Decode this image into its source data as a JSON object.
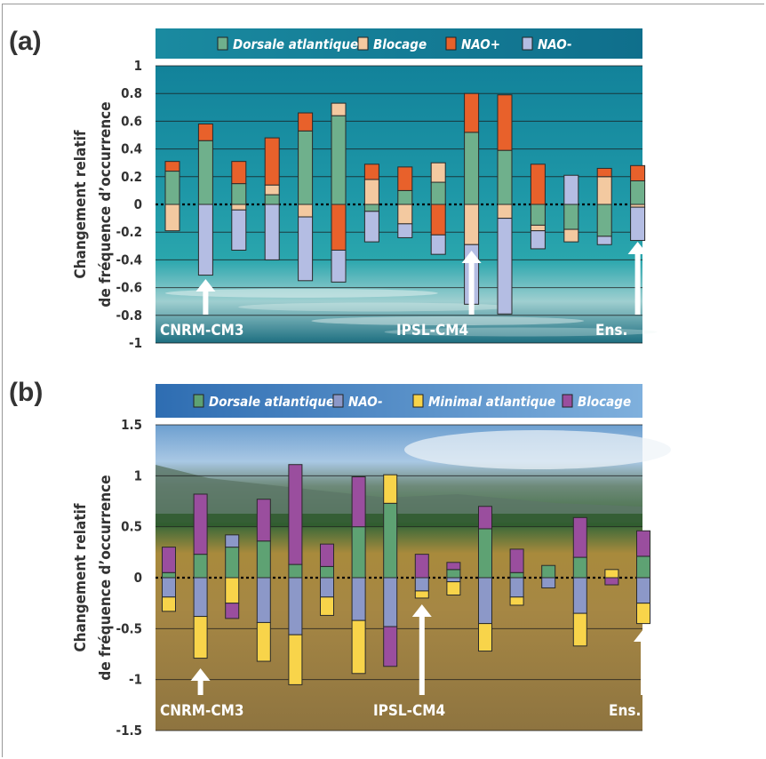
{
  "panels": [
    {
      "label": "(a)",
      "ylabel_line1": "Changement relatif",
      "ylabel_line2": "de fréquence d’occurrence",
      "legend": [
        {
          "name": "Dorsale atlantique",
          "color": "#6fb08c"
        },
        {
          "name": "Blocage",
          "color": "#f3c9a0"
        },
        {
          "name": "NAO+",
          "color": "#e8612b"
        },
        {
          "name": "NAO-",
          "color": "#b4bde3"
        }
      ],
      "model_labels": [
        {
          "text": "CNRM-CM3",
          "index": 1
        },
        {
          "text": "IPSL-CM4",
          "index": 9
        },
        {
          "text": "Ens.",
          "index": 16
        }
      ]
    },
    {
      "label": "(b)",
      "ylabel_line1": "Changement relatif",
      "ylabel_line2": "de fréquence d’occurrence",
      "legend": [
        {
          "name": "Dorsale atlantique",
          "color": "#5ea273"
        },
        {
          "name": "NAO-",
          "color": "#8c98c8"
        },
        {
          "name": "Minimal atlantique",
          "color": "#f8d44a"
        },
        {
          "name": "Blocage",
          "color": "#9a4e9e"
        }
      ],
      "model_labels": [
        {
          "text": "CNRM-CM3",
          "index": 1
        },
        {
          "text": "IPSL-CM4",
          "index": 9
        },
        {
          "text": "Ens.",
          "index": 16
        }
      ]
    }
  ],
  "chart_data": [
    {
      "type": "bar",
      "stacked": true,
      "ylim": [
        -1,
        1
      ],
      "yticks": [
        "1",
        "0.8",
        "0.6",
        "0.4",
        "0.2",
        "0",
        "-0.2",
        "-0.4",
        "-0.6",
        "-0.8",
        "-1"
      ],
      "ytick_values": [
        1,
        0.8,
        0.6,
        0.4,
        0.2,
        0,
        -0.2,
        -0.4,
        -0.6,
        -0.8,
        -1
      ],
      "grid": true,
      "bars": [
        [
          {
            "s": 0,
            "v": 0.0
          },
          {
            "s": 0,
            "v": 0.24
          },
          {
            "s": 1,
            "v": -0.19
          },
          {
            "s": 2,
            "v": 0.07
          }
        ],
        [
          {
            "s": 0,
            "v": 0.46
          },
          {
            "s": 2,
            "v": 0.12
          },
          {
            "s": 3,
            "v": -0.51
          }
        ],
        [
          {
            "s": 0,
            "v": 0.15
          },
          {
            "s": 2,
            "v": 0.16
          },
          {
            "s": 1,
            "v": -0.04
          },
          {
            "s": 3,
            "v": -0.29
          }
        ],
        [
          {
            "s": 0,
            "v": 0.07
          },
          {
            "s": 1,
            "v": 0.07
          },
          {
            "s": 2,
            "v": 0.34
          },
          {
            "s": 3,
            "v": -0.4
          }
        ],
        [
          {
            "s": 0,
            "v": 0.53
          },
          {
            "s": 2,
            "v": 0.13
          },
          {
            "s": 1,
            "v": -0.09
          },
          {
            "s": 3,
            "v": -0.46
          }
        ],
        [
          {
            "s": 0,
            "v": 0.64
          },
          {
            "s": 1,
            "v": 0.09
          },
          {
            "s": 2,
            "v": -0.33
          },
          {
            "s": 3,
            "v": -0.23
          }
        ],
        [
          {
            "s": 1,
            "v": 0.18
          },
          {
            "s": 2,
            "v": 0.11
          },
          {
            "s": 0,
            "v": -0.05
          },
          {
            "s": 3,
            "v": -0.22
          }
        ],
        [
          {
            "s": 0,
            "v": 0.1
          },
          {
            "s": 2,
            "v": 0.17
          },
          {
            "s": 1,
            "v": -0.14
          },
          {
            "s": 3,
            "v": -0.1
          }
        ],
        [
          {
            "s": 0,
            "v": 0.16
          },
          {
            "s": 1,
            "v": 0.14
          },
          {
            "s": 2,
            "v": -0.22
          },
          {
            "s": 3,
            "v": -0.14
          }
        ],
        [
          {
            "s": 0,
            "v": 0.52
          },
          {
            "s": 2,
            "v": 0.28
          },
          {
            "s": 1,
            "v": -0.29
          },
          {
            "s": 3,
            "v": -0.43
          }
        ],
        [
          {
            "s": 0,
            "v": 0.39
          },
          {
            "s": 2,
            "v": 0.4
          },
          {
            "s": 1,
            "v": -0.1
          },
          {
            "s": 3,
            "v": -0.69
          }
        ],
        [
          {
            "s": 2,
            "v": 0.29
          },
          {
            "s": 0,
            "v": -0.15
          },
          {
            "s": 1,
            "v": -0.04
          },
          {
            "s": 3,
            "v": -0.13
          }
        ],
        [
          {
            "s": 3,
            "v": 0.21
          },
          {
            "s": 0,
            "v": -0.18
          },
          {
            "s": 1,
            "v": -0.09
          }
        ],
        [
          {
            "s": 1,
            "v": 0.2
          },
          {
            "s": 2,
            "v": 0.06
          },
          {
            "s": 0,
            "v": -0.23
          },
          {
            "s": 3,
            "v": -0.06
          }
        ],
        [
          {
            "s": 0,
            "v": 0.17
          },
          {
            "s": 2,
            "v": 0.11
          },
          {
            "s": 1,
            "v": -0.02
          },
          {
            "s": 3,
            "v": -0.24
          }
        ]
      ]
    },
    {
      "type": "bar",
      "stacked": true,
      "ylim": [
        -1.5,
        1.5
      ],
      "yticks": [
        "1.5",
        "1",
        "0.5",
        "0",
        "-0.5",
        "-1",
        "-1.5"
      ],
      "ytick_values": [
        1.5,
        1,
        0.5,
        0,
        -0.5,
        -1,
        -1.5
      ],
      "grid": true,
      "bars": [
        [
          {
            "s": 0,
            "v": 0.05
          },
          {
            "s": 3,
            "v": 0.25
          },
          {
            "s": 1,
            "v": -0.19
          },
          {
            "s": 2,
            "v": -0.14
          }
        ],
        [
          {
            "s": 0,
            "v": 0.23
          },
          {
            "s": 3,
            "v": 0.59
          },
          {
            "s": 1,
            "v": -0.38
          },
          {
            "s": 2,
            "v": -0.41
          }
        ],
        [
          {
            "s": 0,
            "v": 0.3
          },
          {
            "s": 1,
            "v": 0.12
          },
          {
            "s": 2,
            "v": -0.25
          },
          {
            "s": 3,
            "v": -0.15
          }
        ],
        [
          {
            "s": 0,
            "v": 0.36
          },
          {
            "s": 3,
            "v": 0.41
          },
          {
            "s": 1,
            "v": -0.44
          },
          {
            "s": 2,
            "v": -0.38
          }
        ],
        [
          {
            "s": 0,
            "v": 0.13
          },
          {
            "s": 3,
            "v": 0.98
          },
          {
            "s": 1,
            "v": -0.56
          },
          {
            "s": 2,
            "v": -0.49
          }
        ],
        [
          {
            "s": 0,
            "v": 0.11
          },
          {
            "s": 3,
            "v": 0.22
          },
          {
            "s": 1,
            "v": -0.19
          },
          {
            "s": 2,
            "v": -0.18
          }
        ],
        [
          {
            "s": 0,
            "v": 0.5
          },
          {
            "s": 3,
            "v": 0.49
          },
          {
            "s": 1,
            "v": -0.42
          },
          {
            "s": 2,
            "v": -0.52
          }
        ],
        [
          {
            "s": 0,
            "v": 0.73
          },
          {
            "s": 2,
            "v": 0.28
          },
          {
            "s": 1,
            "v": -0.48
          },
          {
            "s": 3,
            "v": -0.39
          }
        ],
        [
          {
            "s": 3,
            "v": 0.23
          },
          {
            "s": 1,
            "v": -0.13
          },
          {
            "s": 2,
            "v": -0.07
          }
        ],
        [
          {
            "s": 0,
            "v": 0.08
          },
          {
            "s": 3,
            "v": 0.07
          },
          {
            "s": 1,
            "v": -0.04
          },
          {
            "s": 2,
            "v": -0.13
          }
        ],
        [
          {
            "s": 0,
            "v": 0.48
          },
          {
            "s": 3,
            "v": 0.22
          },
          {
            "s": 1,
            "v": -0.45
          },
          {
            "s": 2,
            "v": -0.27
          }
        ],
        [
          {
            "s": 0,
            "v": 0.05
          },
          {
            "s": 3,
            "v": 0.23
          },
          {
            "s": 1,
            "v": -0.19
          },
          {
            "s": 2,
            "v": -0.08
          }
        ],
        [
          {
            "s": 0,
            "v": 0.12
          },
          {
            "s": 1,
            "v": -0.1
          }
        ],
        [
          {
            "s": 0,
            "v": 0.2
          },
          {
            "s": 3,
            "v": 0.39
          },
          {
            "s": 1,
            "v": -0.35
          },
          {
            "s": 2,
            "v": -0.32
          }
        ],
        [
          {
            "s": 2,
            "v": 0.08
          },
          {
            "s": 3,
            "v": -0.07
          }
        ],
        [
          {
            "s": 0,
            "v": 0.21
          },
          {
            "s": 3,
            "v": 0.25
          },
          {
            "s": 1,
            "v": -0.25
          },
          {
            "s": 2,
            "v": -0.2
          }
        ]
      ]
    }
  ]
}
